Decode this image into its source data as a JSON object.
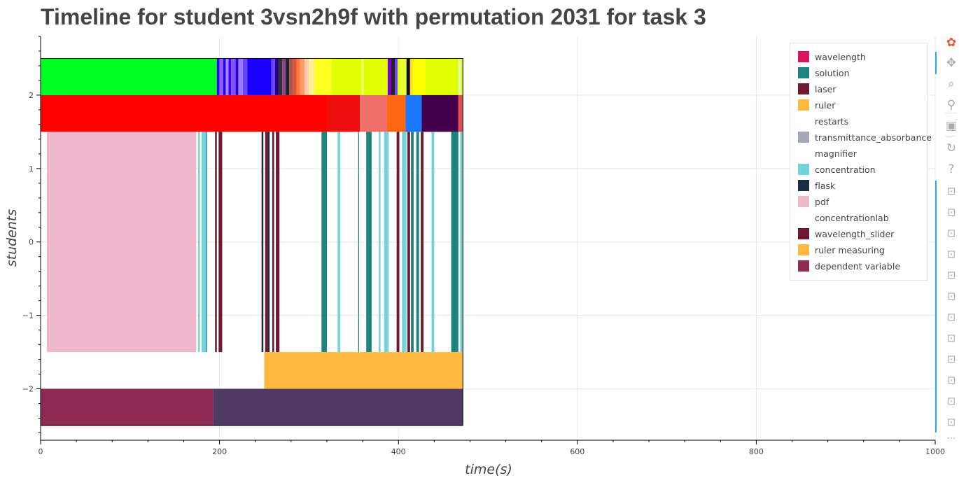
{
  "title": "Timeline for student 3vsn2h9f with permutation 2031 for task 3",
  "chart_data": {
    "type": "timeline",
    "title": "Timeline for student 3vsn2h9f with permutation 2031 for task 3",
    "xlabel": "time(s)",
    "ylabel": "students",
    "xlim": [
      0,
      1000
    ],
    "ylim": [
      -2.7,
      2.8
    ],
    "x_ticks": [
      0,
      200,
      400,
      600,
      800,
      1000
    ],
    "y_ticks": [
      2,
      1,
      0,
      -1,
      -2
    ],
    "y_tick_labels": [
      "2",
      "1",
      "0",
      "−1",
      "−2"
    ],
    "grid": true,
    "legend_position": "top-right",
    "legend": [
      {
        "name": "wavelength",
        "color": "#d6145f"
      },
      {
        "name": "solution",
        "color": "#20847e"
      },
      {
        "name": "laser",
        "color": "#6d1a30"
      },
      {
        "name": "ruler",
        "color": "#ffb840"
      },
      {
        "name": "restarts",
        "color": "#ffffff"
      },
      {
        "name": "transmittance_absorbance",
        "color": "#a0aabb"
      },
      {
        "name": "magnifier",
        "color": "#ffffff"
      },
      {
        "name": "concentration",
        "color": "#74d2db"
      },
      {
        "name": "flask",
        "color": "#1a2b44"
      },
      {
        "name": "pdf",
        "color": "#efb8cc"
      },
      {
        "name": "concentrationlab",
        "color": "#ffffff"
      },
      {
        "name": "wavelength_slider",
        "color": "#6d1a30"
      },
      {
        "name": "ruler measuring",
        "color": "#ffb840"
      },
      {
        "name": "dependent variable",
        "color": "#8e2b52"
      }
    ],
    "rows": [
      {
        "y_range": [
          2,
          2.5
        ],
        "segments": [
          {
            "start": 0,
            "end": 197,
            "color": "#00ff22"
          },
          {
            "start": 197,
            "end": 200,
            "color": "#3300ff"
          },
          {
            "start": 200,
            "end": 204,
            "color": "#8a66ff"
          },
          {
            "start": 204,
            "end": 207,
            "color": "#2a00ee"
          },
          {
            "start": 207,
            "end": 210,
            "color": "#a48cff"
          },
          {
            "start": 210,
            "end": 213,
            "color": "#4400ff"
          },
          {
            "start": 213,
            "end": 218,
            "color": "#7a55ff"
          },
          {
            "start": 218,
            "end": 221,
            "color": "#3300cc"
          },
          {
            "start": 221,
            "end": 226,
            "color": "#9977ff"
          },
          {
            "start": 226,
            "end": 231,
            "color": "#6a44ff"
          },
          {
            "start": 231,
            "end": 258,
            "color": "#1a00ff"
          },
          {
            "start": 258,
            "end": 262,
            "color": "#6a44ff"
          },
          {
            "start": 262,
            "end": 266,
            "color": "#2b0088"
          },
          {
            "start": 266,
            "end": 270,
            "color": "#333333"
          },
          {
            "start": 270,
            "end": 274,
            "color": "#884488"
          },
          {
            "start": 274,
            "end": 278,
            "color": "#222222"
          },
          {
            "start": 278,
            "end": 282,
            "color": "#aa5555"
          },
          {
            "start": 282,
            "end": 286,
            "color": "#dd5533"
          },
          {
            "start": 286,
            "end": 290,
            "color": "#ff7744"
          },
          {
            "start": 290,
            "end": 295,
            "color": "#ff9966"
          },
          {
            "start": 295,
            "end": 300,
            "color": "#ffccaa"
          },
          {
            "start": 300,
            "end": 306,
            "color": "#ffee99"
          },
          {
            "start": 306,
            "end": 325,
            "color": "#ffff22"
          },
          {
            "start": 325,
            "end": 359,
            "color": "#e0ff00"
          },
          {
            "start": 359,
            "end": 361,
            "color": "#eeff88"
          },
          {
            "start": 361,
            "end": 388,
            "color": "#e0ff00"
          },
          {
            "start": 388,
            "end": 392,
            "color": "#7a00cc"
          },
          {
            "start": 392,
            "end": 396,
            "color": "#222222"
          },
          {
            "start": 396,
            "end": 399,
            "color": "#6644ff"
          },
          {
            "start": 399,
            "end": 402,
            "color": "#e0ff00"
          },
          {
            "start": 402,
            "end": 409,
            "color": "#e8ff33"
          },
          {
            "start": 409,
            "end": 413,
            "color": "#111111"
          },
          {
            "start": 413,
            "end": 416,
            "color": "#ffdd22"
          },
          {
            "start": 416,
            "end": 430,
            "color": "#ffff00"
          },
          {
            "start": 430,
            "end": 467,
            "color": "#e0ff00"
          },
          {
            "start": 467,
            "end": 470,
            "color": "#ddffaa"
          },
          {
            "start": 470,
            "end": 472,
            "color": "#e0ff00"
          }
        ]
      },
      {
        "y_range": [
          1.5,
          2
        ],
        "segments": [
          {
            "start": 0,
            "end": 320,
            "color": "#ff0000"
          },
          {
            "start": 320,
            "end": 357,
            "color": "#ee0e0e"
          },
          {
            "start": 357,
            "end": 387,
            "color": "#ee7068"
          },
          {
            "start": 387,
            "end": 408,
            "color": "#ff6611"
          },
          {
            "start": 408,
            "end": 426,
            "color": "#1a77ff"
          },
          {
            "start": 426,
            "end": 467,
            "color": "#44004c"
          },
          {
            "start": 467,
            "end": 472,
            "color": "#e84a50"
          }
        ]
      },
      {
        "y_range": [
          -1.5,
          1.5
        ],
        "segments": [
          {
            "start": 7,
            "end": 174,
            "color": "#efb8cc"
          },
          {
            "start": 176,
            "end": 178,
            "color": "#74d2db"
          },
          {
            "start": 180,
            "end": 185,
            "color": "#74d2db"
          },
          {
            "start": 185,
            "end": 186,
            "color": "#20847e"
          },
          {
            "start": 195,
            "end": 197,
            "color": "#6d1a30"
          },
          {
            "start": 199,
            "end": 203,
            "color": "#6d1a30"
          },
          {
            "start": 247,
            "end": 249,
            "color": "#1a2b44"
          },
          {
            "start": 251,
            "end": 254,
            "color": "#6d1a30"
          },
          {
            "start": 254,
            "end": 256,
            "color": "#1a2b44"
          },
          {
            "start": 259,
            "end": 261,
            "color": "#6d1a30"
          },
          {
            "start": 263,
            "end": 267,
            "color": "#6d1a30"
          },
          {
            "start": 314,
            "end": 320,
            "color": "#20847e"
          },
          {
            "start": 332,
            "end": 335,
            "color": "#74d2db"
          },
          {
            "start": 355,
            "end": 356,
            "color": "#20847e"
          },
          {
            "start": 364,
            "end": 370,
            "color": "#20847e"
          },
          {
            "start": 378,
            "end": 380,
            "color": "#74d2db"
          },
          {
            "start": 384,
            "end": 389,
            "color": "#74d2db"
          },
          {
            "start": 398,
            "end": 401,
            "color": "#6d1a30"
          },
          {
            "start": 404,
            "end": 409,
            "color": "#74d2db"
          },
          {
            "start": 410,
            "end": 413,
            "color": "#6d1a30"
          },
          {
            "start": 414,
            "end": 417,
            "color": "#20847e"
          },
          {
            "start": 420,
            "end": 423,
            "color": "#20847e"
          },
          {
            "start": 425,
            "end": 428,
            "color": "#6d1a30"
          },
          {
            "start": 437,
            "end": 440,
            "color": "#74d2db"
          },
          {
            "start": 459,
            "end": 467,
            "color": "#20847e"
          },
          {
            "start": 469,
            "end": 472,
            "color": "#74d2db"
          }
        ]
      },
      {
        "y_range": [
          -2,
          -1.5
        ],
        "segments": [
          {
            "start": 250,
            "end": 472,
            "color": "#ffb840"
          }
        ]
      },
      {
        "y_range": [
          -2.5,
          -2
        ],
        "segments": [
          {
            "start": 0,
            "end": 193,
            "color": "#8e2b52"
          },
          {
            "start": 193,
            "end": 472,
            "color": "#4f3a63"
          }
        ]
      }
    ],
    "outline_x_range": [
      0,
      472
    ],
    "outline_y_range": [
      -2.5,
      2.5
    ]
  },
  "toolbar": {
    "tools": [
      {
        "name": "bokeh-logo-icon",
        "glyph": "✿"
      },
      {
        "name": "pan-icon",
        "glyph": "✥"
      },
      {
        "name": "box-zoom-icon",
        "glyph": "⌕"
      },
      {
        "name": "wheel-zoom-icon",
        "glyph": "⚲"
      },
      {
        "name": "save-icon",
        "glyph": "▣"
      },
      {
        "name": "reset-icon",
        "glyph": "↻"
      },
      {
        "name": "help-icon",
        "glyph": "?"
      }
    ],
    "hover_icon_glyph": "⊡",
    "more_glyph": "⋯"
  }
}
